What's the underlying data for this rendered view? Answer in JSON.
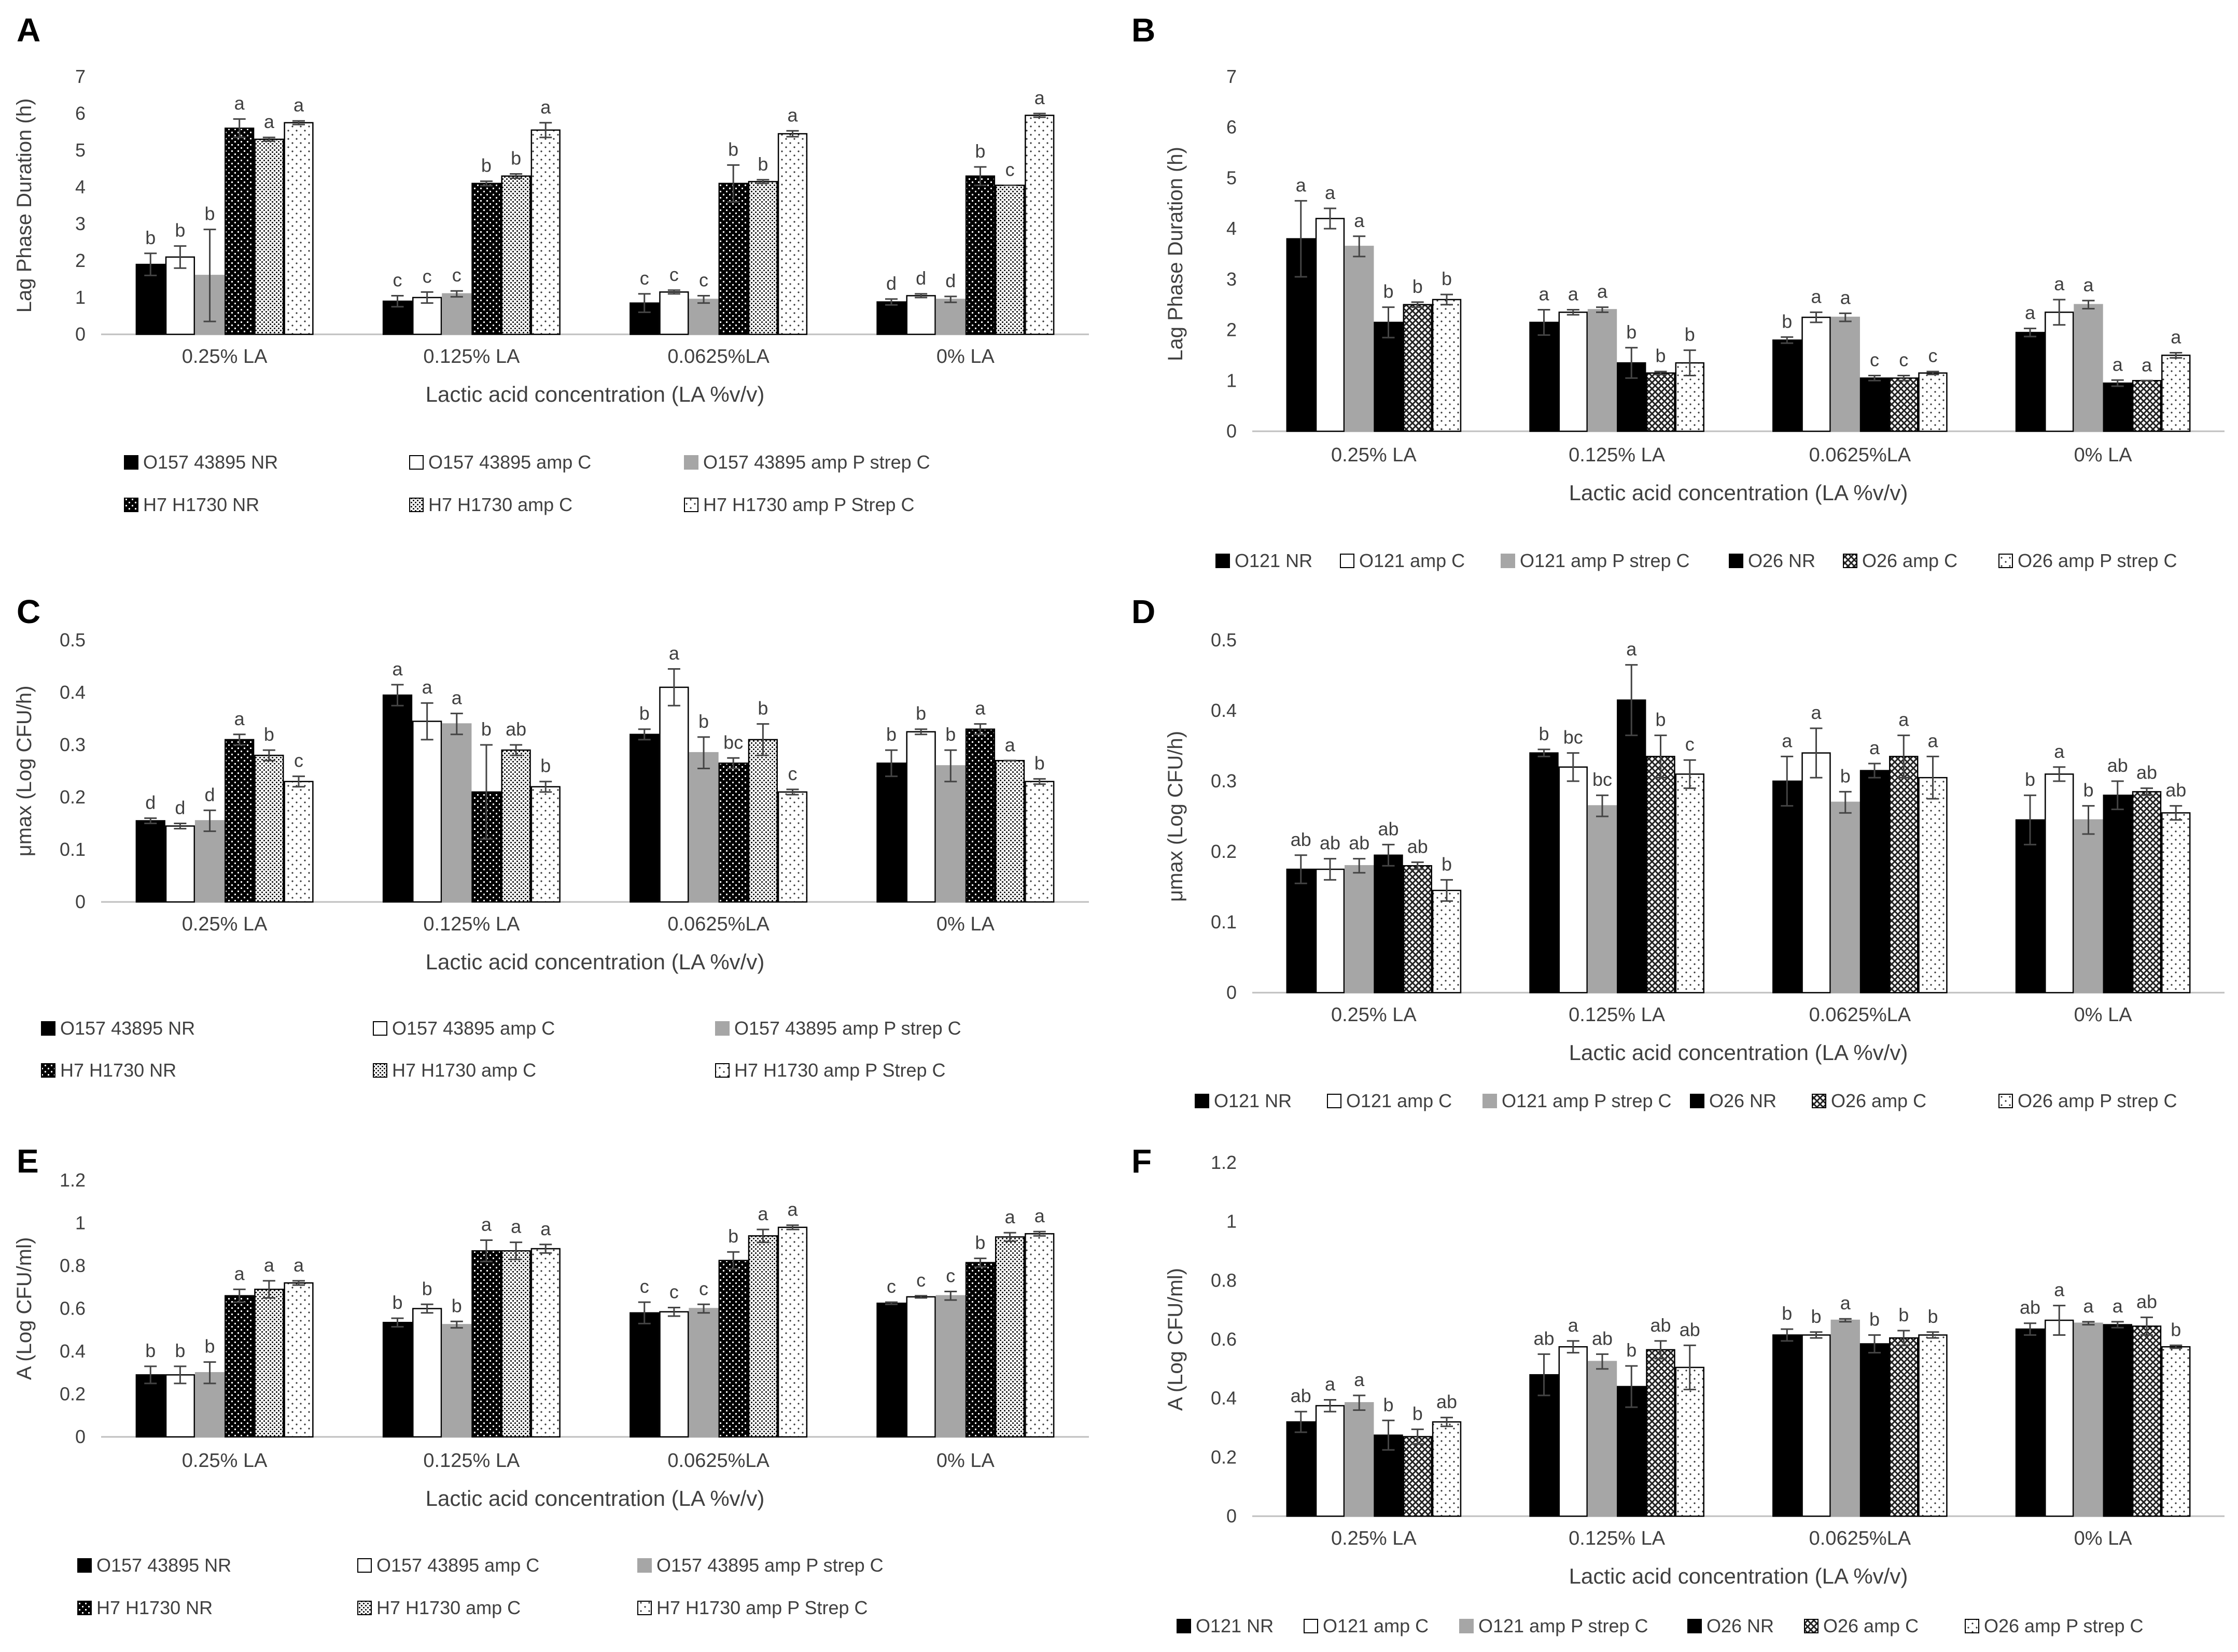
{
  "figure": {
    "patterns": {
      "NR": {
        "fill": "#000000",
        "dots": "#ffffff",
        "kind": "black"
      },
      "ampC": {
        "fill": "#ffffff",
        "kind": "white"
      },
      "ampPC": {
        "fill": "#a6a6a6",
        "kind": "gray"
      },
      "h7nr": {
        "fill": "#000000",
        "dots": "#ffffff",
        "kind": "dotted-black"
      },
      "h7ampc": {
        "fill": "#ffffff",
        "dots": "#222222",
        "kind": "dense-dotted"
      },
      "h7ampps": {
        "fill": "#ffffff",
        "dots": "#333333",
        "kind": "sparse-dotted"
      },
      "o26ampc": {
        "fill": "#ffffff",
        "dots": "#222222",
        "kind": "checkered"
      }
    }
  },
  "chart_data": [
    {
      "panel": "A",
      "type": "bar",
      "title": "",
      "xlabel": "Lactic acid concentration (LA %v/v)",
      "ylabel": "Lag Phase Duration (h)",
      "ylim": [
        0,
        7
      ],
      "yticks": [
        "0",
        "1",
        "2",
        "3",
        "4",
        "5",
        "6",
        "7"
      ],
      "categories": [
        "0.25% LA",
        "0.125% LA",
        "0.0625%LA",
        "0% LA"
      ],
      "legend_rows": 2,
      "series": [
        {
          "name": "O157 43895 NR",
          "pattern": "NR",
          "values": [
            1.9,
            0.9,
            0.85,
            0.88
          ],
          "errors": [
            0.3,
            0.15,
            0.25,
            0.08
          ],
          "letters": [
            "b",
            "c",
            "c",
            "d"
          ]
        },
        {
          "name": "O157 43895 amp C",
          "pattern": "ampC",
          "values": [
            2.1,
            1.0,
            1.15,
            1.05
          ],
          "errors": [
            0.3,
            0.15,
            0.05,
            0.05
          ],
          "letters": [
            "b",
            "c",
            "c",
            "d"
          ]
        },
        {
          "name": "O157 43895 amp P strep C",
          "pattern": "ampPC",
          "values": [
            1.6,
            1.1,
            0.95,
            0.95
          ],
          "errors": [
            1.25,
            0.08,
            0.1,
            0.08
          ],
          "letters": [
            "b",
            "c",
            "c",
            "d"
          ]
        },
        {
          "name": "H7 H1730 NR",
          "pattern": "h7nr",
          "values": [
            5.6,
            4.1,
            4.1,
            4.3
          ],
          "errors": [
            0.25,
            0.06,
            0.5,
            0.25
          ],
          "letters": [
            "a",
            "b",
            "b",
            "b"
          ]
        },
        {
          "name": "H7 H1730 amp C",
          "pattern": "h7ampc",
          "values": [
            5.3,
            4.3,
            4.15,
            4.05
          ],
          "errors": [
            0.05,
            0.06,
            0.05,
            0.0
          ],
          "letters": [
            "a",
            "b",
            "b",
            "c"
          ]
        },
        {
          "name": "H7 H1730 amp P Strep C",
          "pattern": "h7ampps",
          "values": [
            5.75,
            5.55,
            5.45,
            5.95
          ],
          "errors": [
            0.05,
            0.2,
            0.08,
            0.05
          ],
          "letters": [
            "a",
            "a",
            "a",
            "a"
          ]
        }
      ]
    },
    {
      "panel": "B",
      "type": "bar",
      "title": "",
      "xlabel": "Lactic acid concentration (LA %v/v)",
      "ylabel": "Lag Phase Duration (h)",
      "ylim": [
        0,
        7
      ],
      "yticks": [
        "0",
        "1",
        "2",
        "3",
        "4",
        "5",
        "6",
        "7"
      ],
      "categories": [
        "0.25% LA",
        "0.125% LA",
        "0.0625%LA",
        "0% LA"
      ],
      "legend_rows": 1,
      "series": [
        {
          "name": "O121 NR",
          "pattern": "NR",
          "values": [
            3.8,
            2.15,
            1.8,
            1.95
          ],
          "errors": [
            0.75,
            0.25,
            0.06,
            0.08
          ],
          "letters": [
            "a",
            "a",
            "b",
            "a"
          ]
        },
        {
          "name": "O121 amp C",
          "pattern": "ampC",
          "values": [
            4.2,
            2.35,
            2.25,
            2.35
          ],
          "errors": [
            0.2,
            0.05,
            0.1,
            0.25
          ],
          "letters": [
            "a",
            "a",
            "a",
            "a"
          ]
        },
        {
          "name": "O121 amp P strep C",
          "pattern": "ampPC",
          "values": [
            3.65,
            2.4,
            2.25,
            2.5
          ],
          "errors": [
            0.2,
            0.05,
            0.08,
            0.08
          ],
          "letters": [
            "a",
            "a",
            "a",
            "a"
          ]
        },
        {
          "name": "O26 NR",
          "pattern": "NR",
          "values": [
            2.15,
            1.35,
            1.05,
            0.95
          ],
          "errors": [
            0.3,
            0.3,
            0.05,
            0.06
          ],
          "letters": [
            "b",
            "b",
            "c",
            "a"
          ]
        },
        {
          "name": "O26 amp C",
          "pattern": "o26ampc",
          "values": [
            2.5,
            1.15,
            1.05,
            1.0
          ],
          "errors": [
            0.05,
            0.03,
            0.05,
            0.0
          ],
          "letters": [
            "b",
            "b",
            "c",
            "a"
          ]
        },
        {
          "name": "O26 amp P strep C",
          "pattern": "h7ampps",
          "values": [
            2.6,
            1.35,
            1.15,
            1.5
          ],
          "errors": [
            0.1,
            0.25,
            0.03,
            0.05
          ],
          "letters": [
            "b",
            "b",
            "c",
            "a"
          ]
        }
      ]
    },
    {
      "panel": "C",
      "type": "bar",
      "title": "",
      "xlabel": "Lactic acid concentration (LA %v/v)",
      "ylabel": "μmax (Log CFU/h)",
      "ylim": [
        0,
        0.5
      ],
      "yticks": [
        "0",
        "0.1",
        "0.2",
        "0.3",
        "0.4",
        "0.5"
      ],
      "categories": [
        "0.25% LA",
        "0.125% LA",
        "0.0625%LA",
        "0% LA"
      ],
      "legend_rows": 2,
      "series": [
        {
          "name": "O157 43895 NR",
          "pattern": "NR",
          "values": [
            0.155,
            0.395,
            0.32,
            0.265
          ],
          "errors": [
            0.005,
            0.02,
            0.01,
            0.025
          ],
          "letters": [
            "d",
            "a",
            "b",
            "b"
          ]
        },
        {
          "name": "O157 43895 amp C",
          "pattern": "ampC",
          "values": [
            0.145,
            0.345,
            0.41,
            0.325
          ],
          "errors": [
            0.005,
            0.035,
            0.035,
            0.005
          ],
          "letters": [
            "d",
            "a",
            "a",
            "b"
          ]
        },
        {
          "name": "O157 43895 amp P strep C",
          "pattern": "ampPC",
          "values": [
            0.155,
            0.34,
            0.285,
            0.26
          ],
          "errors": [
            0.02,
            0.02,
            0.03,
            0.03
          ],
          "letters": [
            "d",
            "a",
            "b",
            "b"
          ]
        },
        {
          "name": "H7 H1730 NR",
          "pattern": "h7nr",
          "values": [
            0.31,
            0.21,
            0.265,
            0.33
          ],
          "errors": [
            0.01,
            0.09,
            0.01,
            0.01
          ],
          "letters": [
            "a",
            "b",
            "bc",
            "a"
          ]
        },
        {
          "name": "H7 H1730 amp C",
          "pattern": "h7ampc",
          "values": [
            0.28,
            0.29,
            0.31,
            0.27
          ],
          "errors": [
            0.01,
            0.01,
            0.03,
            0.0
          ],
          "letters": [
            "b",
            "ab",
            "b",
            "a"
          ]
        },
        {
          "name": "H7 H1730 amp P Strep C",
          "pattern": "h7ampps",
          "values": [
            0.23,
            0.22,
            0.21,
            0.23
          ],
          "errors": [
            0.01,
            0.01,
            0.005,
            0.005
          ],
          "letters": [
            "c",
            "b",
            "c",
            "b"
          ]
        }
      ]
    },
    {
      "panel": "D",
      "type": "bar",
      "title": "",
      "xlabel": "Lactic acid concentration (LA %v/v)",
      "ylabel": "μmax (Log CFU/h)",
      "ylim": [
        0,
        0.5
      ],
      "yticks": [
        "0",
        "0.1",
        "0.2",
        "0.3",
        "0.4",
        "0.5"
      ],
      "categories": [
        "0.25% LA",
        "0.125% LA",
        "0.0625%LA",
        "0% LA"
      ],
      "legend_rows": 1,
      "series": [
        {
          "name": "O121 NR",
          "pattern": "NR",
          "values": [
            0.175,
            0.34,
            0.3,
            0.245
          ],
          "errors": [
            0.02,
            0.005,
            0.035,
            0.035
          ],
          "letters": [
            "ab",
            "b",
            "a",
            "b"
          ]
        },
        {
          "name": "O121 amp C",
          "pattern": "ampC",
          "values": [
            0.175,
            0.32,
            0.34,
            0.31
          ],
          "errors": [
            0.015,
            0.02,
            0.035,
            0.01
          ],
          "letters": [
            "ab",
            "bc",
            "a",
            "a"
          ]
        },
        {
          "name": "O121 amp P strep C",
          "pattern": "ampPC",
          "values": [
            0.18,
            0.265,
            0.27,
            0.245
          ],
          "errors": [
            0.01,
            0.015,
            0.015,
            0.02
          ],
          "letters": [
            "ab",
            "bc",
            "b",
            "b"
          ]
        },
        {
          "name": "O26 NR",
          "pattern": "NR",
          "values": [
            0.195,
            0.415,
            0.315,
            0.28
          ],
          "errors": [
            0.015,
            0.05,
            0.01,
            0.02
          ],
          "letters": [
            "ab",
            "a",
            "a",
            "ab"
          ]
        },
        {
          "name": "O26 amp C",
          "pattern": "o26ampc",
          "values": [
            0.18,
            0.335,
            0.335,
            0.285
          ],
          "errors": [
            0.005,
            0.03,
            0.03,
            0.005
          ],
          "letters": [
            "ab",
            "b",
            "a",
            "ab"
          ]
        },
        {
          "name": "O26 amp P strep C",
          "pattern": "h7ampps",
          "values": [
            0.145,
            0.31,
            0.305,
            0.255
          ],
          "errors": [
            0.015,
            0.02,
            0.03,
            0.01
          ],
          "letters": [
            "b",
            "c",
            "a",
            "ab"
          ]
        }
      ]
    },
    {
      "panel": "E",
      "type": "bar",
      "title": "",
      "xlabel": "Lactic acid concentration (LA %v/v)",
      "ylabel": "A (Log CFU/ml)",
      "ylim": [
        0,
        1.2
      ],
      "yticks": [
        "0",
        "0.2",
        "0.4",
        "0.6",
        "0.8",
        "1",
        "1.2"
      ],
      "categories": [
        "0.25% LA",
        "0.125% LA",
        "0.0625%LA",
        "0% LA"
      ],
      "legend_rows": 2,
      "series": [
        {
          "name": "O157 43895 NR",
          "pattern": "NR",
          "values": [
            0.29,
            0.535,
            0.58,
            0.625
          ],
          "errors": [
            0.04,
            0.02,
            0.05,
            0.005
          ],
          "letters": [
            "b",
            "b",
            "c",
            "c"
          ]
        },
        {
          "name": "O157 43895 amp C",
          "pattern": "ampC",
          "values": [
            0.29,
            0.6,
            0.585,
            0.655
          ],
          "errors": [
            0.04,
            0.02,
            0.02,
            0.005
          ],
          "letters": [
            "b",
            "b",
            "c",
            "c"
          ]
        },
        {
          "name": "O157 43895 amp P strep C",
          "pattern": "ampPC",
          "values": [
            0.3,
            0.525,
            0.6,
            0.66
          ],
          "errors": [
            0.05,
            0.015,
            0.02,
            0.02
          ],
          "letters": [
            "b",
            "b",
            "c",
            "c"
          ]
        },
        {
          "name": "H7 H1730 NR",
          "pattern": "h7nr",
          "values": [
            0.66,
            0.87,
            0.825,
            0.815
          ],
          "errors": [
            0.03,
            0.05,
            0.04,
            0.02
          ],
          "letters": [
            "a",
            "a",
            "b",
            "b"
          ]
        },
        {
          "name": "H7 H1730 amp C",
          "pattern": "h7ampc",
          "values": [
            0.69,
            0.87,
            0.94,
            0.935
          ],
          "errors": [
            0.04,
            0.04,
            0.03,
            0.02
          ],
          "letters": [
            "a",
            "a",
            "a",
            "a"
          ]
        },
        {
          "name": "H7 H1730 amp P Strep C",
          "pattern": "h7ampps",
          "values": [
            0.72,
            0.88,
            0.98,
            0.95
          ],
          "errors": [
            0.01,
            0.02,
            0.01,
            0.01
          ],
          "letters": [
            "a",
            "a",
            "a",
            "a"
          ]
        }
      ]
    },
    {
      "panel": "F",
      "type": "bar",
      "title": "",
      "xlabel": "Lactic acid concentration (LA %v/v)",
      "ylabel": "A (Log CFU/ml)",
      "ylim": [
        0,
        1.2
      ],
      "yticks": [
        "0",
        "0.2",
        "0.4",
        "0.6",
        "0.8",
        "1",
        "1.2"
      ],
      "categories": [
        "0.25% LA",
        "0.125% LA",
        "0.0625%LA",
        "0% LA"
      ],
      "legend_rows": 1,
      "series": [
        {
          "name": "O121 NR",
          "pattern": "NR",
          "values": [
            0.32,
            0.48,
            0.615,
            0.635
          ],
          "errors": [
            0.035,
            0.07,
            0.02,
            0.02
          ],
          "letters": [
            "ab",
            "ab",
            "b",
            "ab"
          ]
        },
        {
          "name": "O121 amp C",
          "pattern": "ampC",
          "values": [
            0.375,
            0.575,
            0.615,
            0.665
          ],
          "errors": [
            0.02,
            0.02,
            0.01,
            0.05
          ],
          "letters": [
            "a",
            "a",
            "b",
            "a"
          ]
        },
        {
          "name": "O121 amp P strep C",
          "pattern": "ampPC",
          "values": [
            0.385,
            0.525,
            0.665,
            0.655
          ],
          "errors": [
            0.025,
            0.025,
            0.005,
            0.005
          ],
          "letters": [
            "a",
            "ab",
            "a",
            "a"
          ]
        },
        {
          "name": "O26 NR",
          "pattern": "NR",
          "values": [
            0.275,
            0.44,
            0.585,
            0.65
          ],
          "errors": [
            0.05,
            0.07,
            0.03,
            0.01
          ],
          "letters": [
            "b",
            "b",
            "b",
            "a"
          ]
        },
        {
          "name": "O26 amp C",
          "pattern": "o26ampc",
          "values": [
            0.27,
            0.565,
            0.605,
            0.645
          ],
          "errors": [
            0.025,
            0.03,
            0.025,
            0.03
          ],
          "letters": [
            "b",
            "ab",
            "b",
            "ab"
          ]
        },
        {
          "name": "O26 amp P strep C",
          "pattern": "h7ampps",
          "values": [
            0.32,
            0.505,
            0.615,
            0.575
          ],
          "errors": [
            0.015,
            0.075,
            0.01,
            0.005
          ],
          "letters": [
            "ab",
            "ab",
            "b",
            "b"
          ]
        }
      ]
    }
  ]
}
